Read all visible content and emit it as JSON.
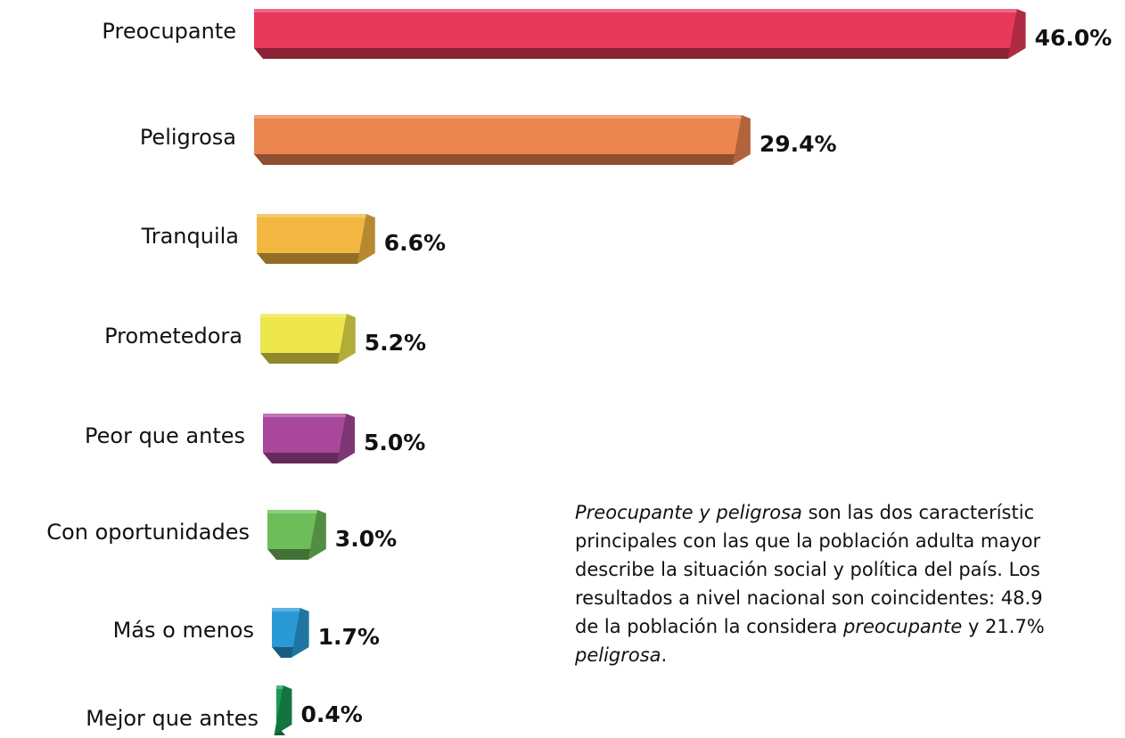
{
  "chart_data": {
    "type": "bar",
    "orientation": "horizontal",
    "categories": [
      "Preocupante",
      "Peligrosa",
      "Tranquila",
      "Prometedora",
      "Peor que antes",
      "Con oportunidades",
      "Más o menos",
      "Mejor que antes"
    ],
    "values": [
      46.0,
      29.4,
      6.6,
      5.2,
      5.0,
      3.0,
      1.7,
      0.4
    ],
    "value_labels": [
      "46.0%",
      "29.4%",
      "6.6%",
      "5.2%",
      "5.0%",
      "3.0%",
      "1.7%",
      "0.4%"
    ],
    "colors": [
      "#e8395a",
      "#ec8550",
      "#f2b641",
      "#ece64a",
      "#a9489b",
      "#6dbd58",
      "#2a9ad6",
      "#1b9a55"
    ],
    "annotation": [
      [
        {
          "text": "Preocupante y peligrosa",
          "italic": true
        },
        {
          "text": " son las dos característic"
        }
      ],
      [
        {
          "text": "principales con las que la población adulta mayor"
        }
      ],
      [
        {
          "text": "describe la situación social y política del país. Los"
        }
      ],
      [
        {
          "text": "resultados a nivel nacional son coincidentes: 48.9"
        }
      ],
      [
        {
          "text": "de la población la considera "
        },
        {
          "text": "preocupante",
          "italic": true
        },
        {
          "text": " y 21.7%"
        }
      ],
      [
        {
          "text": "peligrosa",
          "italic": true
        },
        {
          "text": "."
        }
      ]
    ]
  }
}
